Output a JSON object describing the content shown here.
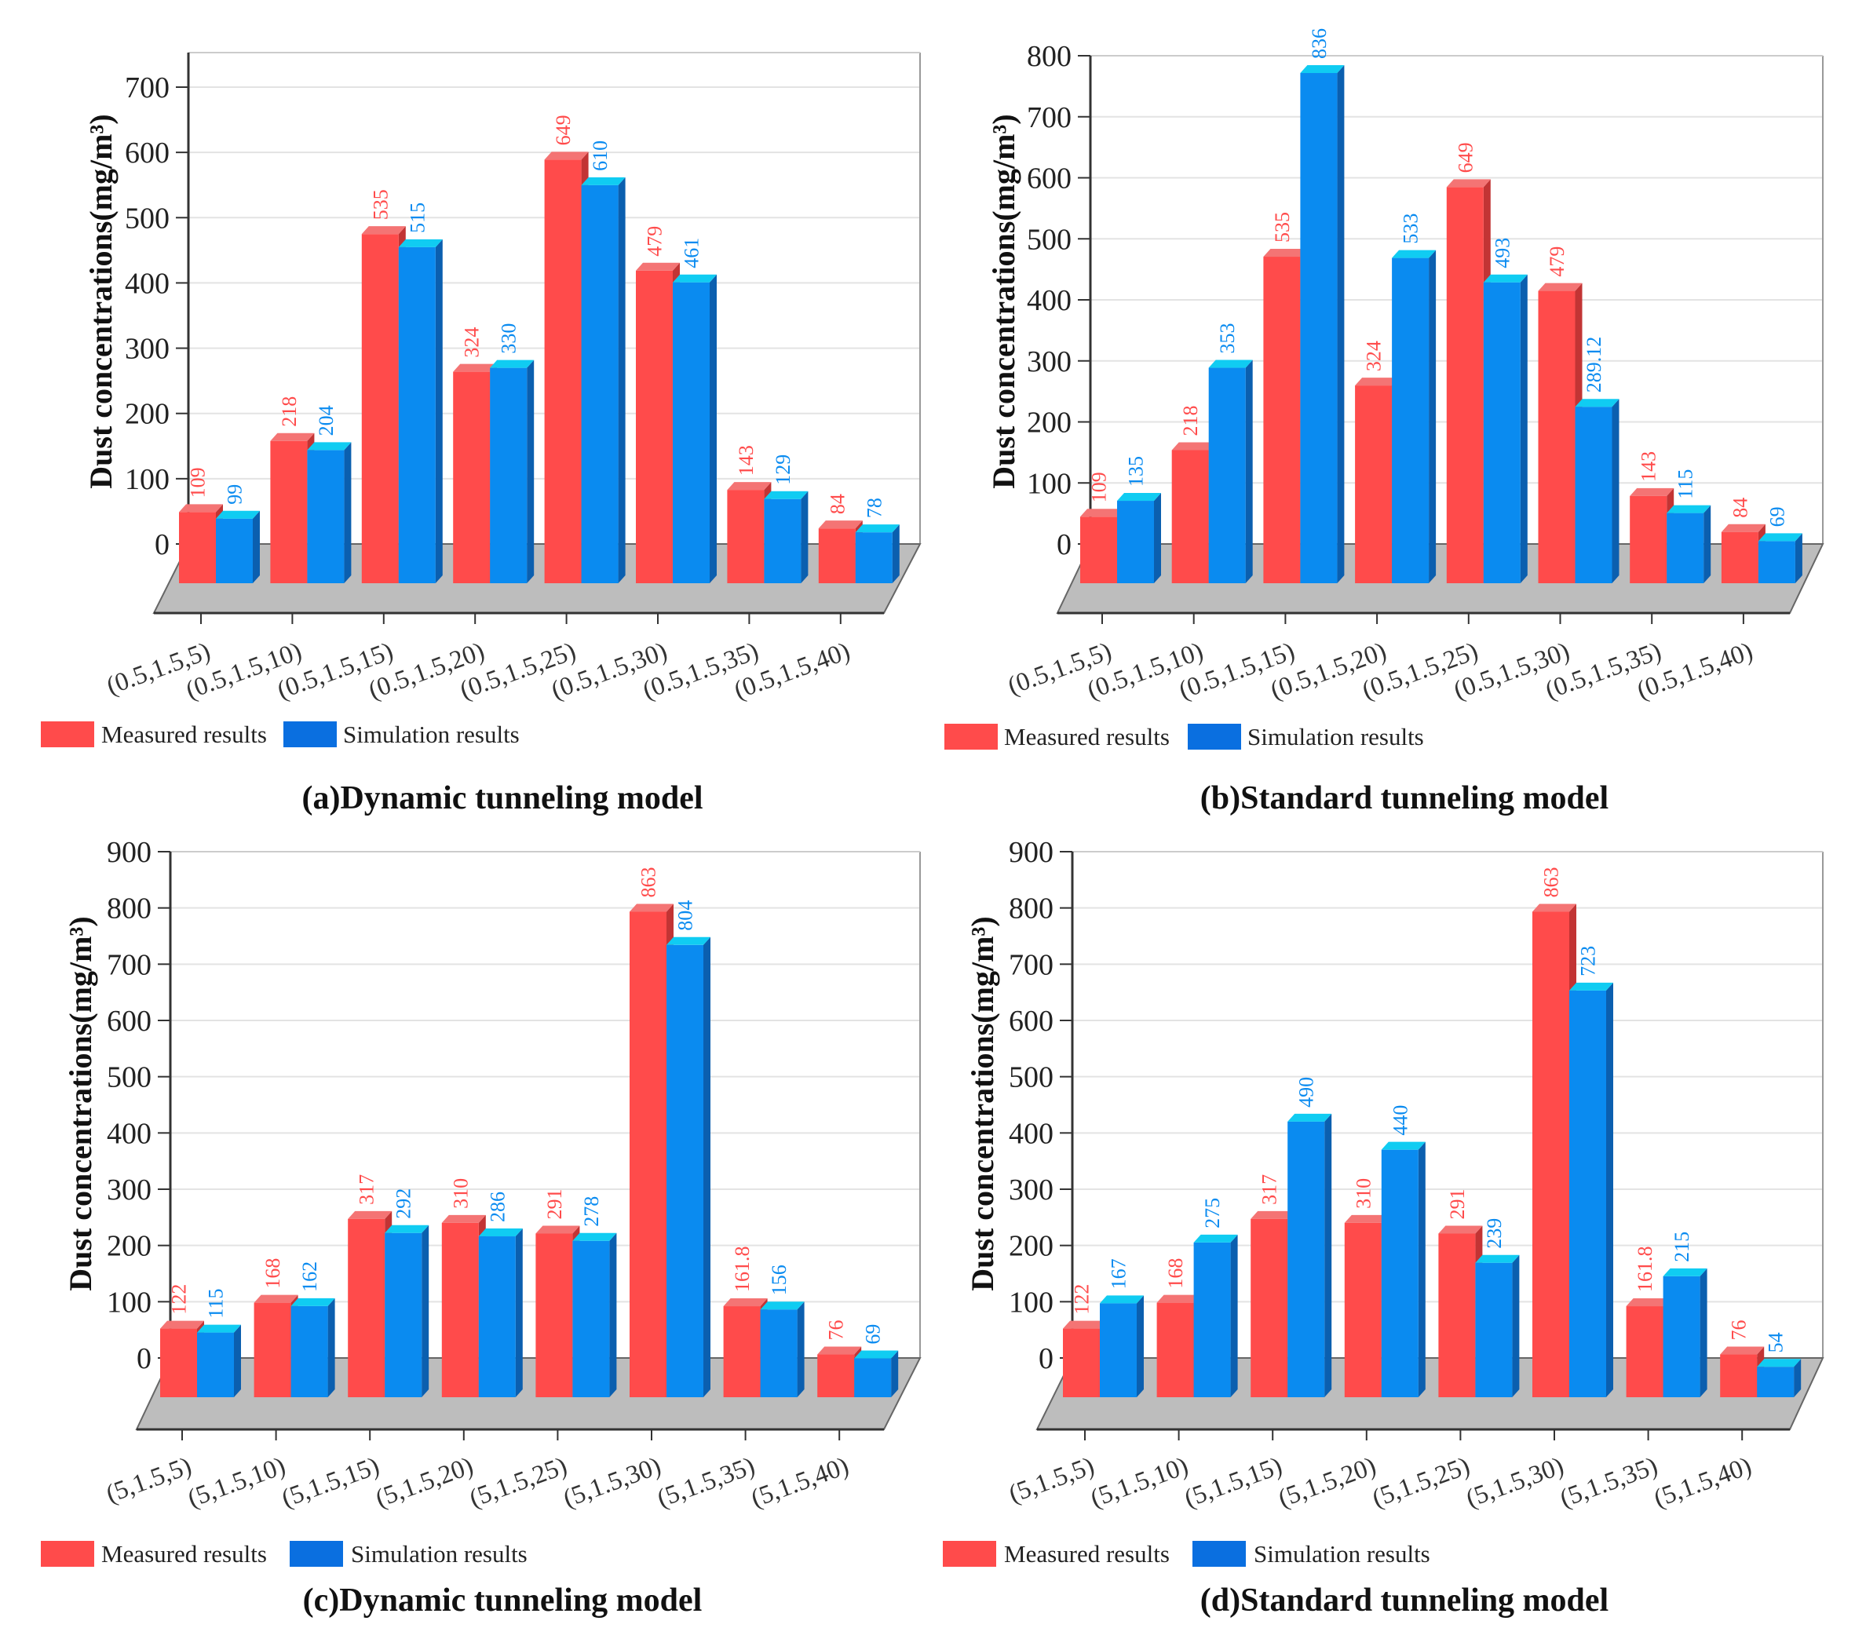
{
  "legend": {
    "measured": "Measured results",
    "simulation": "Simulation results"
  },
  "colors": {
    "measured_front": "#FF4B4B",
    "measured_top": "#F47474",
    "measured_side": "#C23434",
    "simulation_front": "#0A8BF0",
    "simulation_top": "#10CCF2",
    "simulation_side": "#0B5FAF",
    "floor": "#BDBDBD",
    "grid": "#E3E3E3"
  },
  "chart_data": [
    {
      "type": "bar",
      "title": "(a)Dynamic tunneling model",
      "ylabel": "Dust concentrations(mg/m³)",
      "xlabel": "",
      "ylim": [
        0,
        700
      ],
      "yticks": [
        0,
        100,
        200,
        300,
        400,
        500,
        600,
        700
      ],
      "grid": true,
      "legend_placement": "bottom-left",
      "categories": [
        "(0.5,1.5,5)",
        "(0.5,1.5,10)",
        "(0.5,1.5,15)",
        "(0.5,1.5,20)",
        "(0.5,1.5,25)",
        "(0.5,1.5,30)",
        "(0.5,1.5,35)",
        "(0.5,1.5,40)"
      ],
      "series": [
        {
          "name": "Measured results",
          "values": [
            109,
            218,
            535,
            324,
            649,
            479,
            143,
            84
          ]
        },
        {
          "name": "Simulation results",
          "values": [
            99,
            204,
            515,
            330,
            610,
            461,
            129,
            78
          ]
        }
      ]
    },
    {
      "type": "bar",
      "title": "(b)Standard tunneling model",
      "ylabel": "Dust concentrations(mg/m³)",
      "xlabel": "",
      "ylim": [
        0,
        800
      ],
      "yticks": [
        0,
        100,
        200,
        300,
        400,
        500,
        600,
        700,
        800
      ],
      "grid": true,
      "legend_placement": "bottom-left",
      "categories": [
        "(0.5,1.5,5)",
        "(0.5,1.5,10)",
        "(0.5,1.5,15)",
        "(0.5,1.5,20)",
        "(0.5,1.5,25)",
        "(0.5,1.5,30)",
        "(0.5,1.5,35)",
        "(0.5,1.5,40)"
      ],
      "series": [
        {
          "name": "Measured results",
          "values": [
            109,
            218,
            535,
            324,
            649,
            479,
            143,
            84
          ]
        },
        {
          "name": "Simulation results",
          "values": [
            135,
            353,
            836,
            533,
            493,
            289.12,
            115,
            69
          ]
        }
      ]
    },
    {
      "type": "bar",
      "title": "(c)Dynamic tunneling model",
      "ylabel": "Dust concentrations(mg/m³)",
      "xlabel": "",
      "ylim": [
        0,
        900
      ],
      "yticks": [
        0,
        100,
        200,
        300,
        400,
        500,
        600,
        700,
        800,
        900
      ],
      "grid": true,
      "legend_placement": "bottom-left",
      "categories": [
        "(5,1.5,5)",
        "(5,1.5,10)",
        "(5,1.5,15)",
        "(5,1.5,20)",
        "(5,1.5,25)",
        "(5,1.5,30)",
        "(5,1.5,35)",
        "(5,1.5,40)"
      ],
      "series": [
        {
          "name": "Measured results",
          "values": [
            122,
            168,
            317,
            310,
            291,
            863,
            161.8,
            76
          ]
        },
        {
          "name": "Simulation results",
          "values": [
            115,
            162,
            292,
            286,
            278,
            804,
            156,
            69
          ]
        }
      ]
    },
    {
      "type": "bar",
      "title": "(d)Standard tunneling model",
      "ylabel": "Dust concentrations(mg/m³)",
      "xlabel": "",
      "ylim": [
        0,
        900
      ],
      "yticks": [
        0,
        100,
        200,
        300,
        400,
        500,
        600,
        700,
        800,
        900
      ],
      "grid": true,
      "legend_placement": "bottom-left",
      "categories": [
        "(5,1.5,5)",
        "(5,1.5,10)",
        "(5,1.5,15)",
        "(5,1.5,20)",
        "(5,1.5,25)",
        "(5,1.5,30)",
        "(5,1.5,35)",
        "(5,1.5,40)"
      ],
      "series": [
        {
          "name": "Measured results",
          "values": [
            122,
            168,
            317,
            310,
            291,
            863,
            161.8,
            76
          ]
        },
        {
          "name": "Simulation results",
          "values": [
            167,
            275,
            490,
            440,
            239,
            723,
            215,
            54
          ]
        }
      ]
    }
  ]
}
